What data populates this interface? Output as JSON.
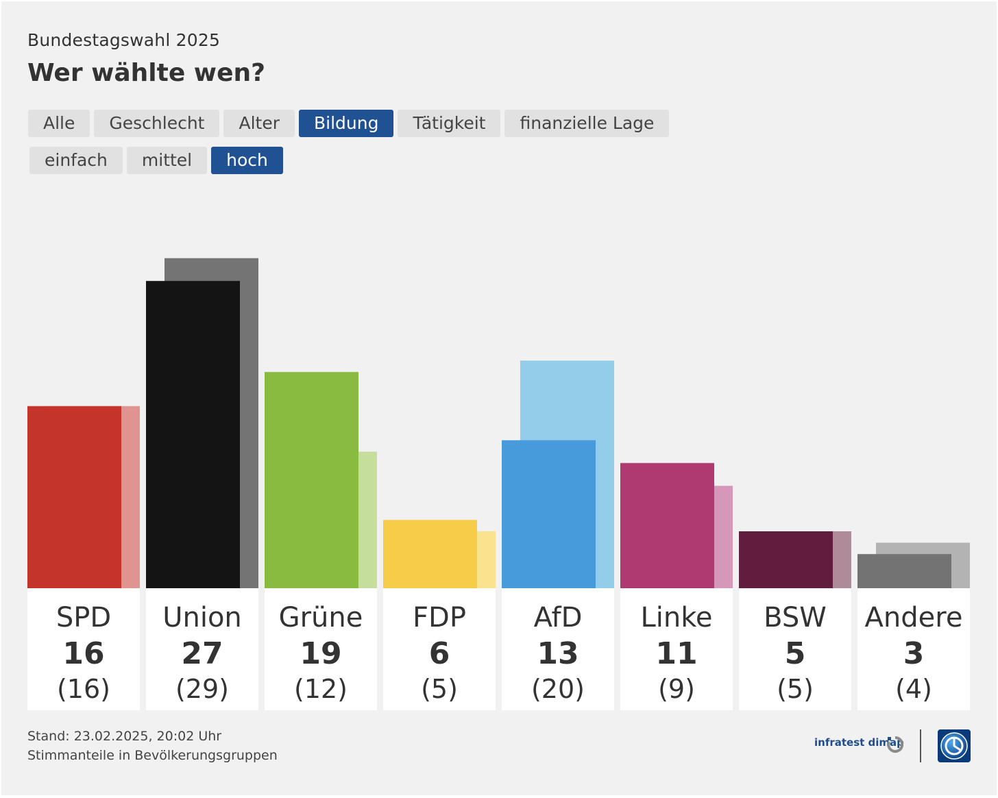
{
  "header": {
    "kicker": "Bundestagswahl 2025",
    "title": "Wer wählte wen?"
  },
  "tabs_primary": [
    {
      "label": "Alle",
      "active": false
    },
    {
      "label": "Geschlecht",
      "active": false
    },
    {
      "label": "Alter",
      "active": false
    },
    {
      "label": "Bildung",
      "active": true
    },
    {
      "label": "Tätigkeit",
      "active": false
    },
    {
      "label": "finanzielle Lage",
      "active": false
    }
  ],
  "tabs_secondary": [
    {
      "label": "einfach",
      "active": false
    },
    {
      "label": "mittel",
      "active": false
    },
    {
      "label": "hoch",
      "active": true
    }
  ],
  "chart_data": {
    "type": "bar",
    "categories": [
      "SPD",
      "Union",
      "Grüne",
      "FDP",
      "AfD",
      "Linke",
      "BSW",
      "Andere"
    ],
    "series": [
      {
        "values": [
          16,
          27,
          19,
          6,
          13,
          11,
          5,
          3
        ]
      },
      {
        "values": [
          16,
          29,
          12,
          5,
          20,
          9,
          5,
          4
        ]
      }
    ],
    "value_labels": [
      "16",
      "27",
      "19",
      "6",
      "13",
      "11",
      "5",
      "3"
    ],
    "comparison_labels": [
      "(16)",
      "(29)",
      "(12)",
      "(5)",
      "(20)",
      "(9)",
      "(5)",
      "(4)"
    ],
    "colors": [
      "#c4342b",
      "#141414",
      "#89bb41",
      "#f6cd48",
      "#479bdb",
      "#ae3a71",
      "#601d3e",
      "#737373"
    ],
    "comparison_colors": [
      "#e09490",
      "#747474",
      "#c5de9c",
      "#fae28f",
      "#94cdea",
      "#d698b8",
      "#af8a99",
      "#b3b3b3"
    ],
    "ylim": [
      0,
      29
    ],
    "grid": false,
    "legend": "none"
  },
  "footer": {
    "date_line": "Stand: 23.02.2025, 20:02 Uhr",
    "caption": "Stimmanteile in Bevölkerungsgruppen"
  },
  "brand": {
    "pollster": "infratest dimap",
    "pollster_color": "#1f4f8a",
    "logo_icon": "ard-tagesschau-globe-icon"
  }
}
